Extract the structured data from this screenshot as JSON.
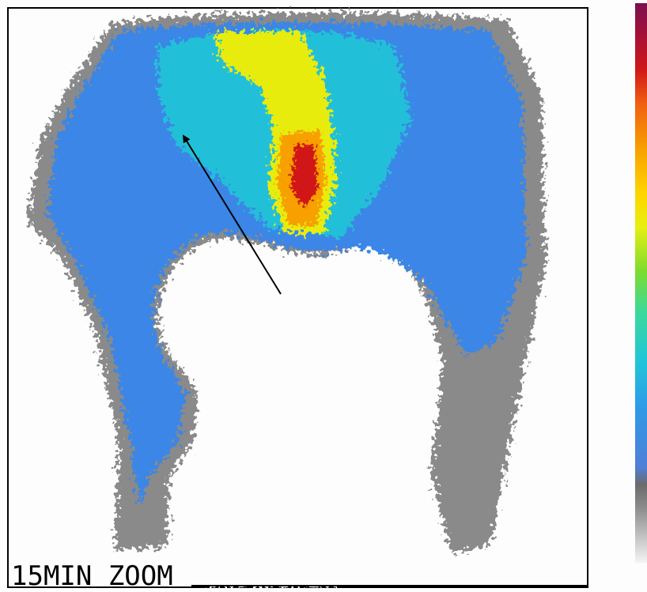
{
  "label": "15MIN ZOOM"
}
